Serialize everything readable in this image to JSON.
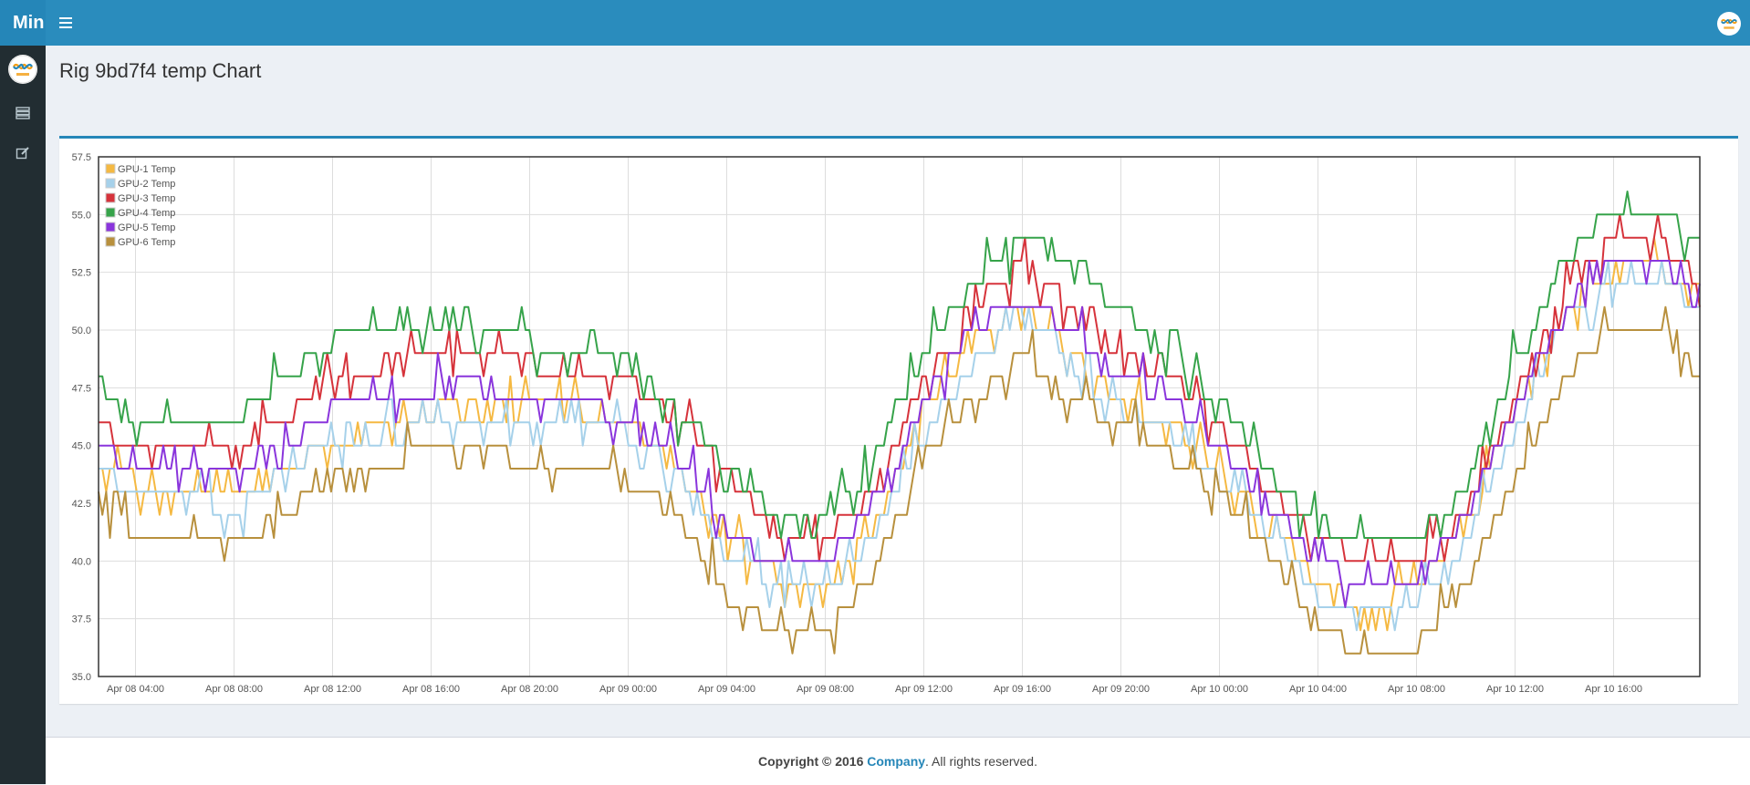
{
  "app": {
    "brand_mini": "Min"
  },
  "page": {
    "title": "Rig 9bd7f4 temp Chart"
  },
  "footer": {
    "prefix": "Copyright © 2016 ",
    "company": "Company",
    "suffix": ". All rights reserved."
  },
  "icons": {
    "menu": "hamburger-menu-icon",
    "sidebar": [
      "server-list-icon",
      "edit-icon"
    ]
  },
  "colors": {
    "topbar": "#2a8cbd",
    "sidebar": "#222d32",
    "accent": "#2586b8"
  },
  "chart_data": {
    "type": "line",
    "title": "",
    "xlabel": "",
    "ylabel": "",
    "ylim": [
      35.0,
      57.5
    ],
    "yticks": [
      "57.5",
      "55.0",
      "52.5",
      "50.0",
      "47.5",
      "45.0",
      "42.5",
      "40.0",
      "37.5",
      "35.0"
    ],
    "xticks": [
      "Apr 08 04:00",
      "Apr 08 08:00",
      "Apr 08 12:00",
      "Apr 08 16:00",
      "Apr 08 20:00",
      "Apr 09 00:00",
      "Apr 09 04:00",
      "Apr 09 08:00",
      "Apr 09 12:00",
      "Apr 09 16:00",
      "Apr 09 20:00",
      "Apr 10 00:00",
      "Apr 10 04:00",
      "Apr 10 08:00",
      "Apr 10 12:00",
      "Apr 10 16:00"
    ],
    "x": [
      "Apr 08 02:30",
      "Apr 08 04:00",
      "Apr 08 06:00",
      "Apr 08 08:00",
      "Apr 08 10:00",
      "Apr 08 12:00",
      "Apr 08 14:00",
      "Apr 08 16:00",
      "Apr 08 18:00",
      "Apr 08 20:00",
      "Apr 08 22:00",
      "Apr 09 00:00",
      "Apr 09 02:00",
      "Apr 09 04:00",
      "Apr 09 06:00",
      "Apr 09 08:00",
      "Apr 09 10:00",
      "Apr 09 12:00",
      "Apr 09 14:00",
      "Apr 09 16:00",
      "Apr 09 18:00",
      "Apr 09 20:00",
      "Apr 09 22:00",
      "Apr 10 00:00",
      "Apr 10 02:00",
      "Apr 10 04:00",
      "Apr 10 06:00",
      "Apr 10 08:00",
      "Apr 10 10:00",
      "Apr 10 12:00",
      "Apr 10 14:00",
      "Apr 10 16:00",
      "Apr 10 18:00",
      "Apr 10 19:30"
    ],
    "series": [
      {
        "name": "GPU-1 Temp",
        "color": "#f5b942",
        "values": [
          44,
          43.5,
          43,
          43,
          44,
          45,
          46,
          46.5,
          46.5,
          46.5,
          46.5,
          46,
          44,
          41,
          39.5,
          39,
          41.5,
          46.5,
          49.5,
          51,
          49,
          47,
          46,
          44,
          42,
          39,
          38,
          39,
          41.5,
          46.5,
          51,
          52.5,
          52.5,
          52
        ]
      },
      {
        "name": "GPU-2 Temp",
        "color": "#a6d1ea",
        "values": [
          44,
          43,
          43,
          42,
          44,
          45,
          45.5,
          46,
          46.5,
          46,
          46,
          45.5,
          44,
          40.5,
          39,
          38.5,
          41,
          45.5,
          48.5,
          51,
          48.5,
          46.5,
          45.5,
          43.5,
          41.5,
          38.5,
          37.5,
          38.5,
          41,
          45.5,
          50.5,
          52,
          52,
          51
        ]
      },
      {
        "name": "GPU-3 Temp",
        "color": "#d6333b",
        "values": [
          46,
          45,
          45,
          45,
          46,
          48,
          48.5,
          49,
          49,
          48.5,
          48,
          48,
          46,
          44,
          41,
          41,
          43,
          47.5,
          50.5,
          53,
          51,
          49,
          48,
          46,
          43,
          41,
          40,
          40,
          42,
          47,
          51.5,
          54,
          54,
          52
        ]
      },
      {
        "name": "GPU-4 Temp",
        "color": "#36a34a",
        "values": [
          48,
          46,
          46,
          46,
          48,
          49.5,
          50,
          50,
          50.5,
          49.5,
          49,
          49,
          46.5,
          44,
          42,
          42,
          44,
          49,
          52,
          54,
          53,
          51,
          49,
          47,
          44,
          41.5,
          41,
          41,
          43,
          49,
          53,
          55.5,
          55,
          54
        ]
      },
      {
        "name": "GPU-5 Temp",
        "color": "#8a35dc",
        "values": [
          45,
          44,
          44,
          44,
          45,
          46.5,
          47,
          47.5,
          47.5,
          47,
          47,
          46,
          44.5,
          41.5,
          40,
          40,
          42.5,
          47,
          50,
          51.5,
          50,
          48,
          47,
          45,
          42.5,
          40,
          39,
          39.5,
          42,
          46.5,
          51,
          53,
          53,
          51
        ]
      },
      {
        "name": "GPU-6 Temp",
        "color": "#b8903d",
        "values": [
          43,
          41,
          41,
          40.5,
          42,
          43.5,
          44,
          45,
          45,
          44,
          44,
          43.5,
          42,
          38.5,
          37,
          37,
          39.5,
          44.5,
          47,
          49,
          47,
          46,
          44.5,
          43,
          40.5,
          37,
          36,
          36.5,
          39,
          43.5,
          48,
          50,
          50,
          48
        ]
      }
    ],
    "grid": true,
    "legend": "top-left"
  }
}
